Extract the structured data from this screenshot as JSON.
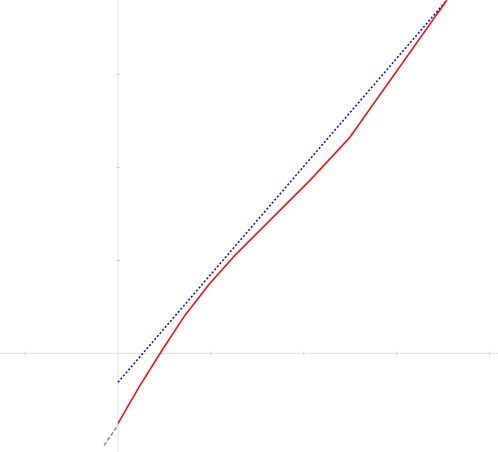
{
  "chart_data": {
    "type": "line",
    "xlim": [
      -1.27,
      4.09
    ],
    "ylim": [
      -1.06,
      3.8
    ],
    "xticks": [
      -1,
      1,
      2,
      3,
      4
    ],
    "yticks": [
      1,
      2,
      3
    ],
    "series": [
      {
        "color": "#0000cc",
        "style": "dotted",
        "x": [
          0,
          3.54
        ],
        "values": [
          -0.31,
          3.8
        ]
      },
      {
        "color": "#ff0000",
        "style": "solid",
        "x": [
          0,
          0.237,
          0.473,
          0.72,
          0.989,
          1.258,
          1.527,
          1.796,
          2.065,
          2.495,
          3.538
        ],
        "values": [
          -0.753,
          -0.344,
          0.032,
          0.409,
          0.753,
          1.054,
          1.323,
          1.591,
          1.86,
          2.323,
          3.796
        ]
      },
      {
        "color": "#888888",
        "style": "dashed",
        "x": [
          -0.15,
          0
        ],
        "values": [
          -0.99,
          -0.77
        ]
      }
    ]
  }
}
